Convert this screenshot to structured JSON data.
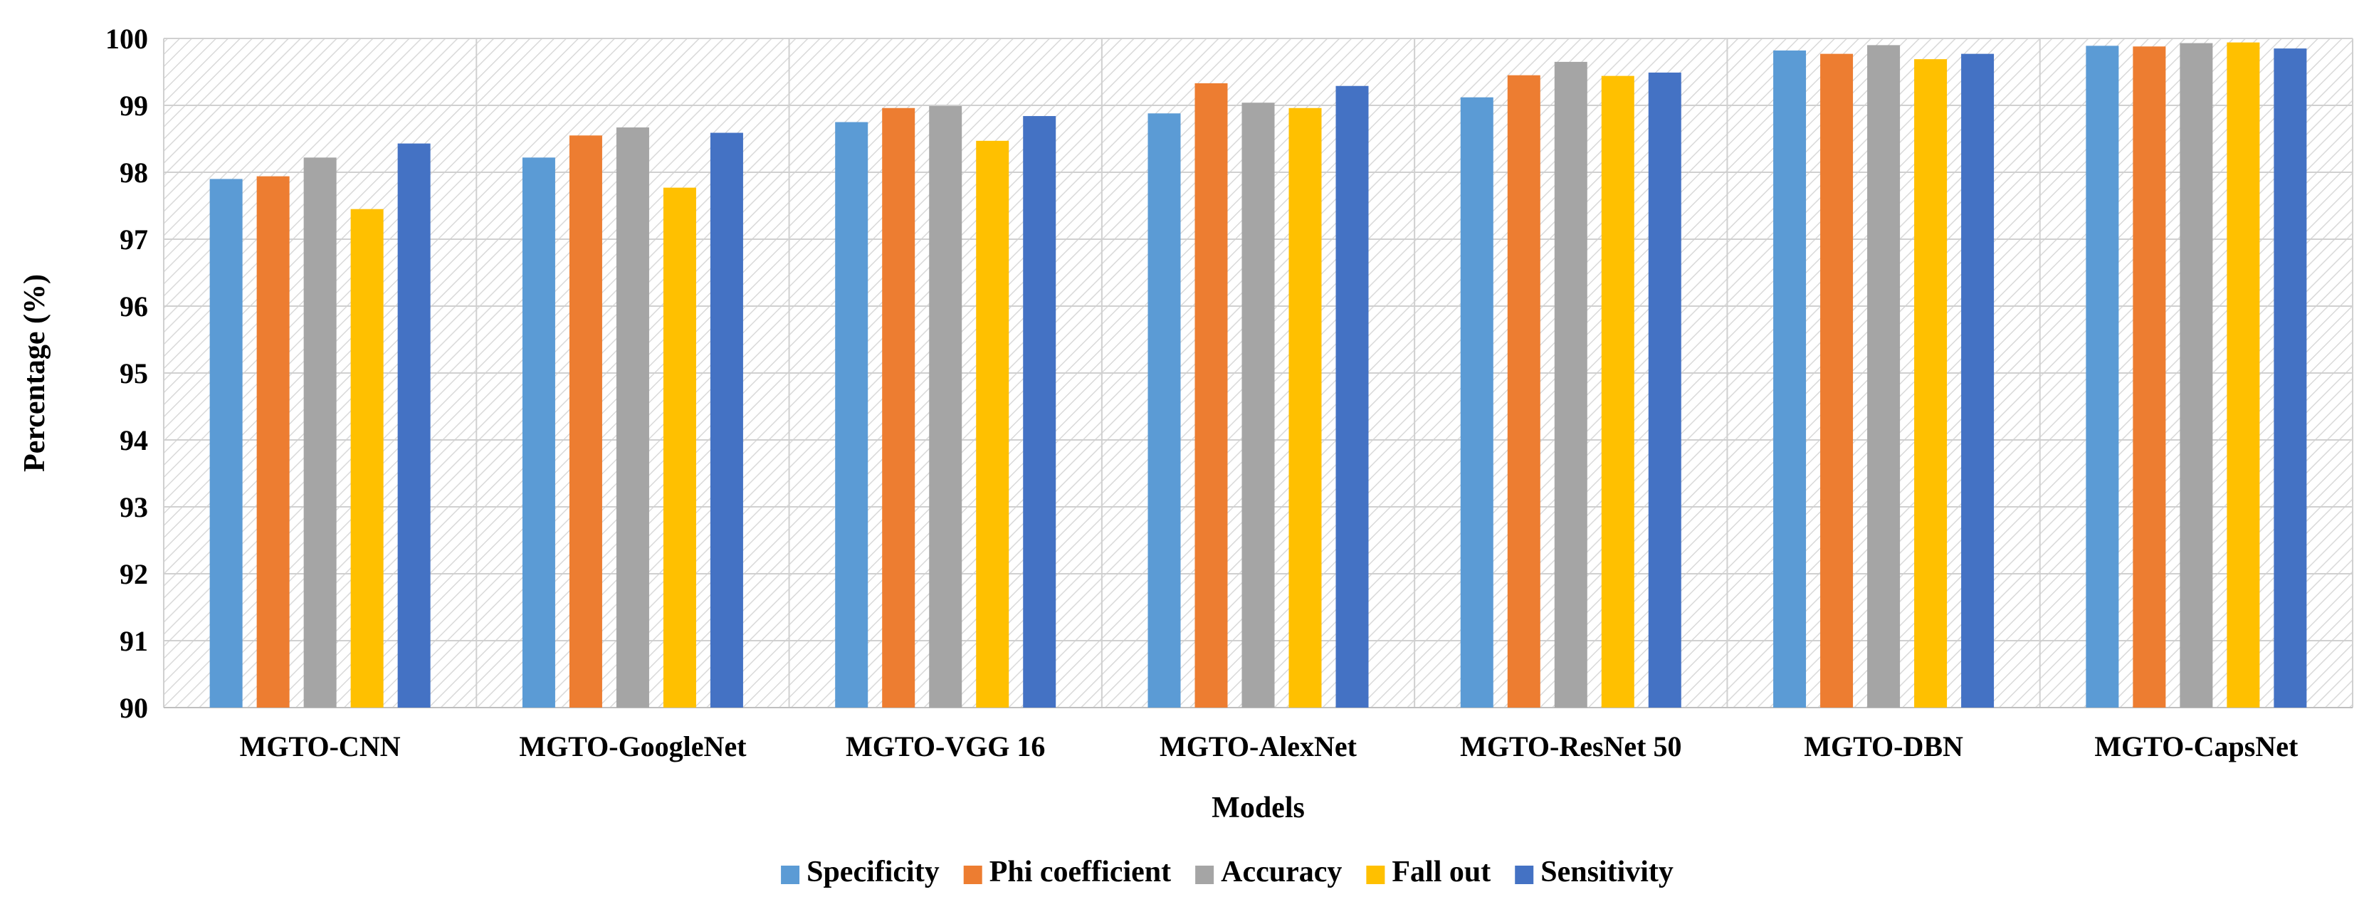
{
  "chart_data": {
    "type": "bar",
    "title": "",
    "xlabel": "Models",
    "ylabel": "Percentage (%)",
    "ylim": [
      90,
      100
    ],
    "yticks": [
      90,
      91,
      92,
      93,
      94,
      95,
      96,
      97,
      98,
      99,
      100
    ],
    "grid": true,
    "legend_position": "bottom",
    "categories": [
      "MGTO-CNN",
      "MGTO-GoogleNet",
      "MGTO-VGG 16",
      "MGTO-AlexNet",
      "MGTO-ResNet 50",
      "MGTO-DBN",
      "MGTO-CapsNet"
    ],
    "series": [
      {
        "name": "Specificity",
        "color": "#5B9BD5",
        "values": [
          97.9,
          98.22,
          98.75,
          98.88,
          99.12,
          99.82,
          99.89
        ]
      },
      {
        "name": "Phi coefficient",
        "color": "#ED7D31",
        "values": [
          97.94,
          98.55,
          98.96,
          99.33,
          99.45,
          99.77,
          99.88
        ]
      },
      {
        "name": "Accuracy",
        "color": "#A5A5A5",
        "values": [
          98.22,
          98.67,
          98.99,
          99.04,
          99.65,
          99.9,
          99.93
        ]
      },
      {
        "name": "Fall out",
        "color": "#FFC000",
        "values": [
          97.45,
          97.77,
          98.47,
          98.96,
          99.44,
          99.69,
          99.94
        ]
      },
      {
        "name": "Sensitivity",
        "color": "#4472C4",
        "values": [
          98.43,
          98.59,
          98.84,
          99.29,
          99.49,
          99.77,
          99.85
        ]
      }
    ]
  }
}
